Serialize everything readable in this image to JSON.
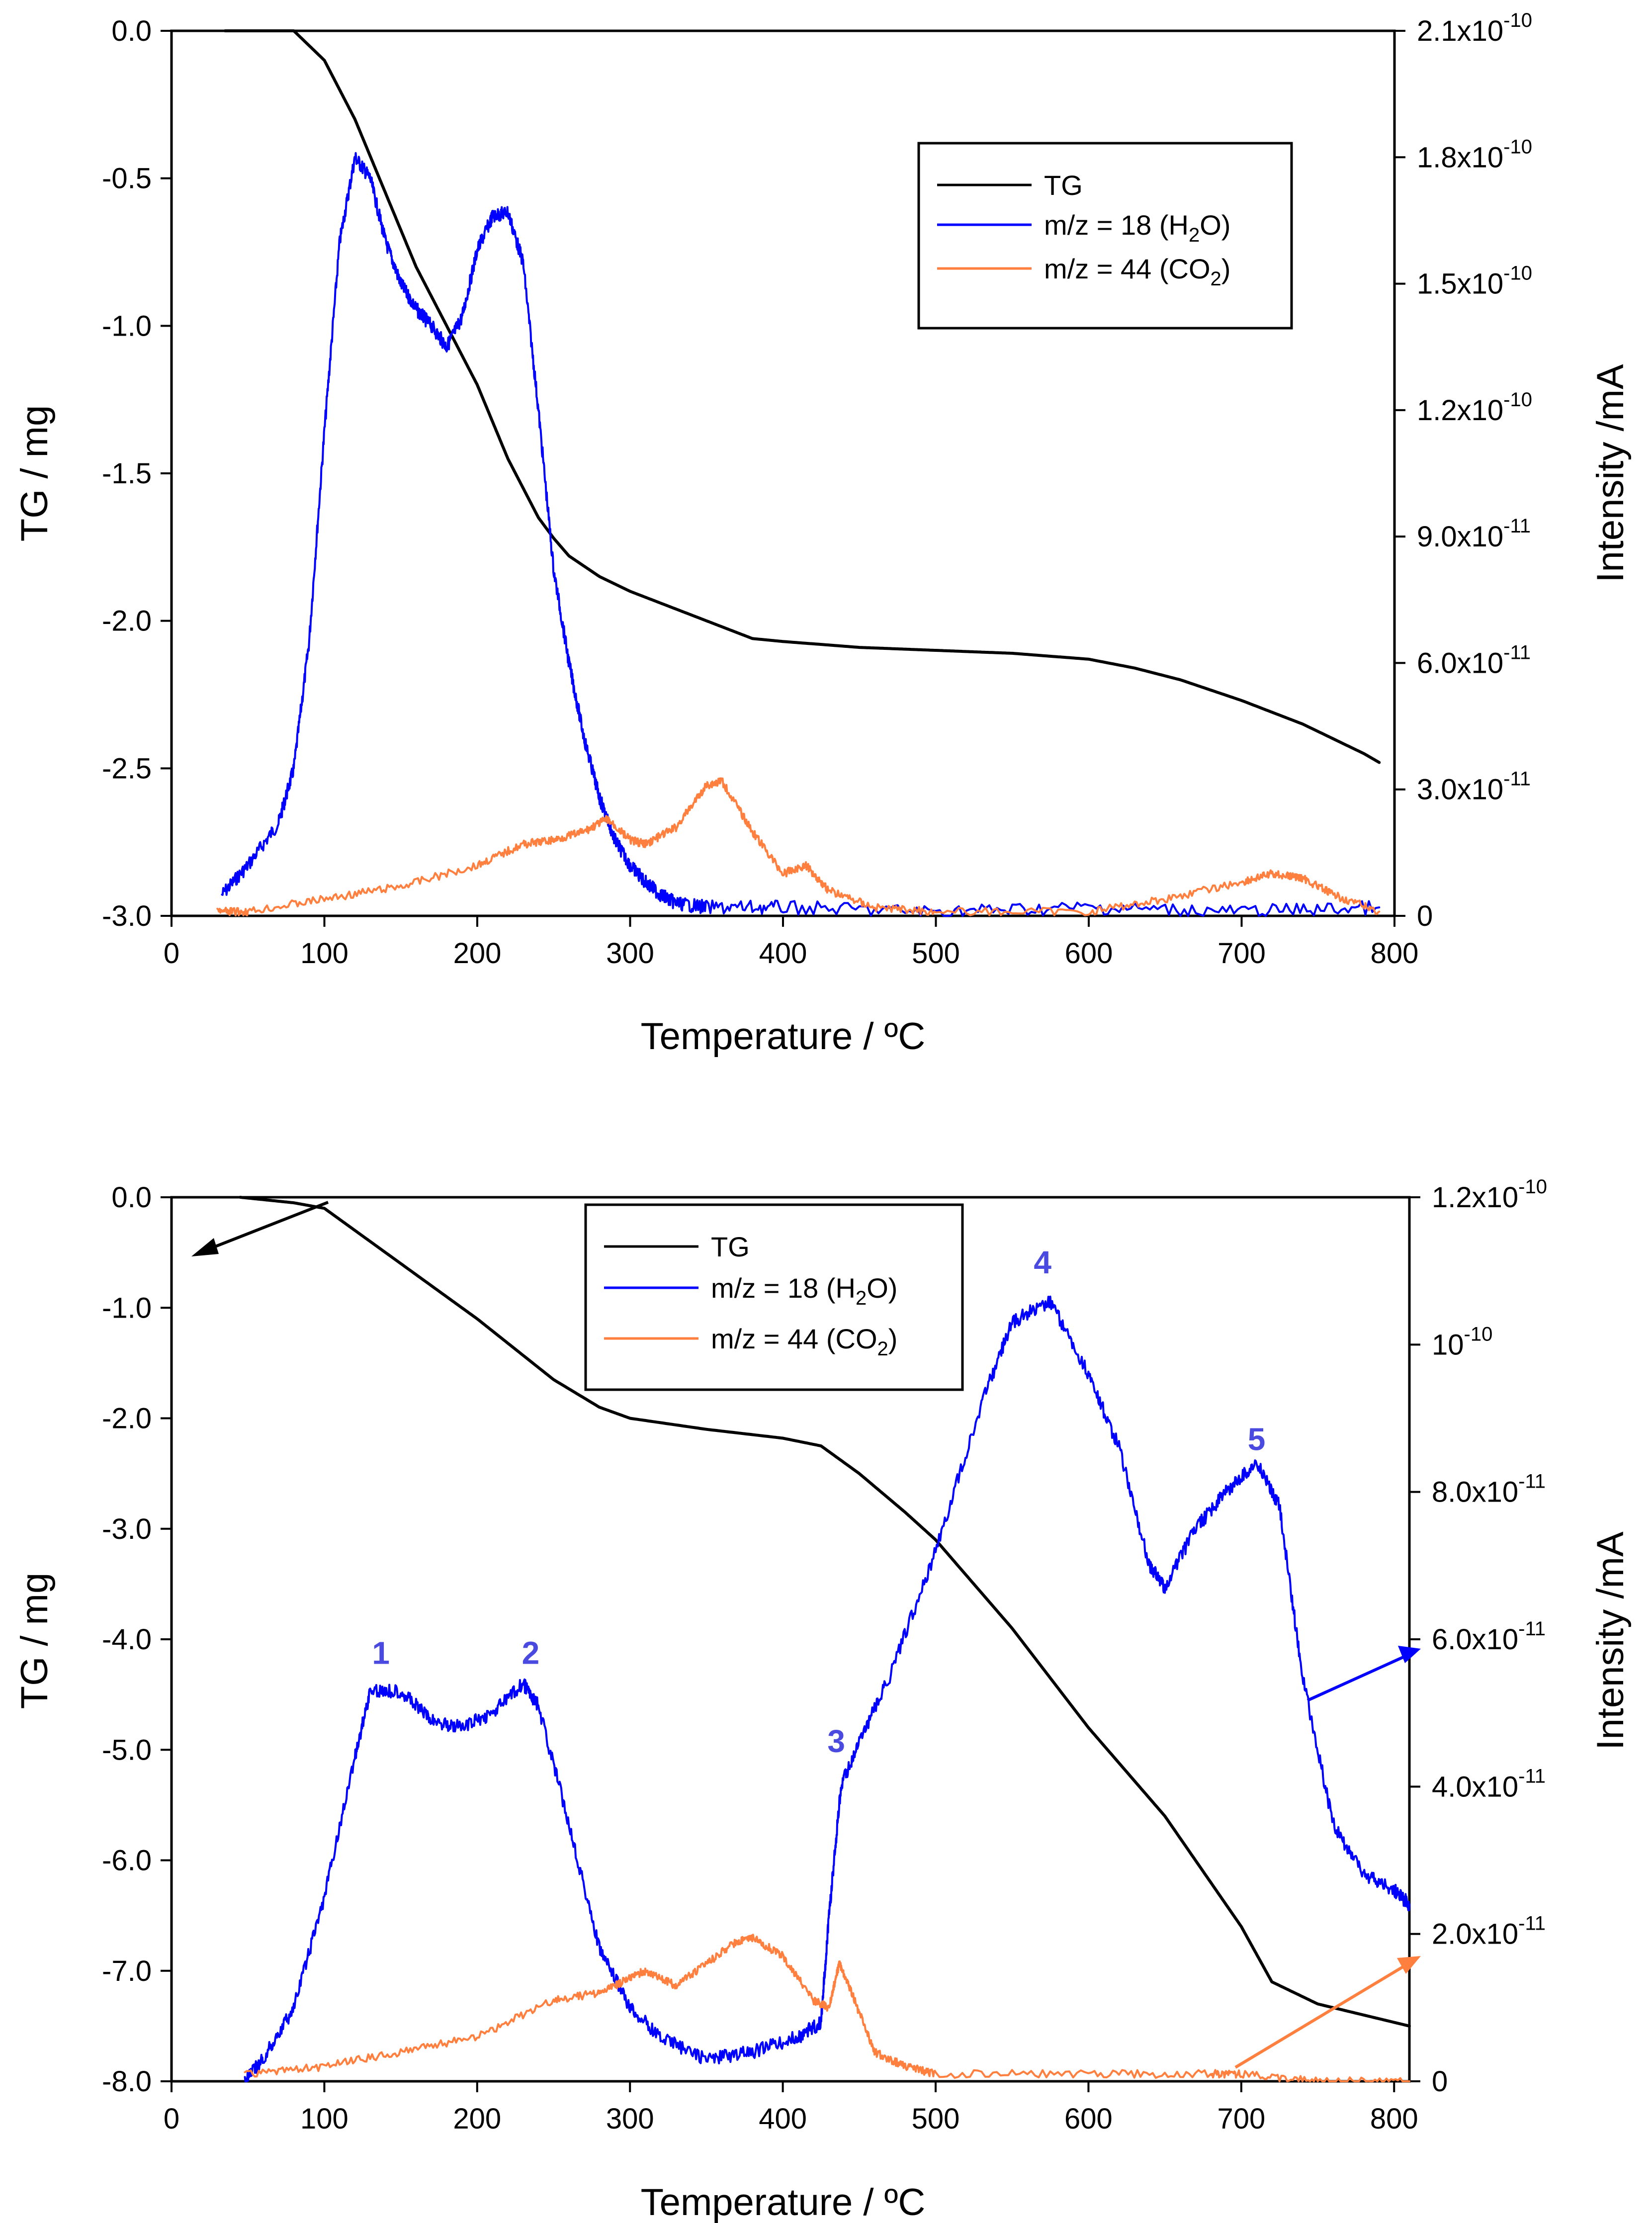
{
  "colors": {
    "tg": "#000000",
    "h2o": "#0000ff",
    "co2": "#ff7f3f",
    "peak_label": "#4a4ae0"
  },
  "chart_data": [
    {
      "type": "line",
      "xlabel": "Temperature / ºC",
      "ylabel": "TG / mg",
      "y2label": "Intensity /mA",
      "xlim": [
        0,
        800
      ],
      "ylim": [
        -3.0,
        0.0
      ],
      "y2lim": [
        0,
        2.1e-10
      ],
      "xticks": [
        "0",
        "100",
        "200",
        "300",
        "400",
        "500",
        "600",
        "700",
        "800"
      ],
      "yticks": [
        "0.0",
        "-0.5",
        "-1.0",
        "-1.5",
        "-2.0",
        "-2.5",
        "-3.0"
      ],
      "y2ticks": [
        "0",
        "3.0x10",
        "6.0x10",
        "9.0x10",
        "1.2x10",
        "1.5x10",
        "1.8x10",
        "2.1x10"
      ],
      "y2tick_exp": [
        "",
        "-11",
        "-11",
        "-11",
        "-10",
        "-10",
        "-10",
        "-10"
      ],
      "legend": {
        "position": "top-right",
        "entries": [
          "TG",
          "m/z = 18 (H",
          "m/z = 44 (CO"
        ],
        "subs": [
          "",
          "2",
          "2"
        ],
        "tails": [
          "",
          "O)",
          ")"
        ]
      },
      "series": [
        {
          "name": "TG",
          "axis": "left",
          "x": [
            35,
            80,
            100,
            120,
            140,
            160,
            180,
            200,
            220,
            240,
            250,
            260,
            280,
            300,
            320,
            340,
            360,
            380,
            400,
            450,
            500,
            550,
            600,
            630,
            660,
            700,
            740,
            780,
            790
          ],
          "y": [
            0.0,
            0.0,
            -0.1,
            -0.3,
            -0.55,
            -0.8,
            -1.0,
            -1.2,
            -1.45,
            -1.65,
            -1.72,
            -1.78,
            -1.85,
            -1.9,
            -1.94,
            -1.98,
            -2.02,
            -2.06,
            -2.07,
            -2.09,
            -2.1,
            -2.11,
            -2.13,
            -2.16,
            -2.2,
            -2.27,
            -2.35,
            -2.45,
            -2.48
          ]
        },
        {
          "name": "m/z = 18 (H2O)",
          "axis": "right",
          "x": [
            33,
            50,
            70,
            80,
            90,
            100,
            110,
            120,
            130,
            140,
            150,
            160,
            170,
            180,
            190,
            200,
            210,
            220,
            230,
            240,
            250,
            260,
            270,
            280,
            290,
            300,
            310,
            320,
            330,
            350,
            400,
            500,
            600,
            700,
            790
          ],
          "y": [
            5e-12,
            1.2e-11,
            2.2e-11,
            3.5e-11,
            6.5e-11,
            1.15e-10,
            1.6e-10,
            1.8e-10,
            1.75e-10,
            1.6e-10,
            1.5e-10,
            1.44e-10,
            1.4e-10,
            1.35e-10,
            1.42e-10,
            1.58e-10,
            1.66e-10,
            1.67e-10,
            1.55e-10,
            1.2e-10,
            8.2e-11,
            6e-11,
            4.2e-11,
            2.8e-11,
            1.8e-11,
            1.2e-11,
            8e-12,
            5e-12,
            3e-12,
            2e-12,
            2e-12,
            1e-12,
            2e-12,
            1e-12,
            2e-12
          ]
        },
        {
          "name": "m/z = 44 (CO2)",
          "axis": "right",
          "x": [
            30,
            50,
            100,
            150,
            200,
            230,
            250,
            270,
            285,
            300,
            310,
            330,
            350,
            360,
            380,
            400,
            415,
            430,
            460,
            500,
            600,
            650,
            700,
            720,
            740,
            760,
            790
          ],
          "y": [
            1e-12,
            1e-12,
            4e-12,
            7e-12,
            1.2e-11,
            1.7e-11,
            1.8e-11,
            2e-11,
            2.3e-11,
            1.8e-11,
            1.7e-11,
            2.1e-11,
            3.1e-11,
            3.2e-11,
            2e-11,
            1e-11,
            1.2e-11,
            6e-12,
            2e-12,
            1e-12,
            1e-12,
            4e-12,
            8e-12,
            1e-11,
            9e-12,
            5e-12,
            1e-12
          ]
        }
      ]
    },
    {
      "type": "line",
      "xlabel": "Temperature / ºC",
      "ylabel": "TG / mg",
      "y2label": "Intensity /mA",
      "xlim": [
        0,
        810
      ],
      "ylim": [
        -8.0,
        0.0
      ],
      "y2lim": [
        0,
        1.2e-10
      ],
      "xticks": [
        "0",
        "100",
        "200",
        "300",
        "400",
        "500",
        "600",
        "700",
        "800"
      ],
      "yticks": [
        "0.0",
        "-1.0",
        "-2.0",
        "-3.0",
        "-4.0",
        "-5.0",
        "-6.0",
        "-7.0",
        "-8.0"
      ],
      "y2ticks": [
        "0",
        "2.0x10",
        "4.0x10",
        "6.0x10",
        "8.0x10",
        "10",
        "1.2x10"
      ],
      "y2tick_exp": [
        "",
        "-11",
        "-11",
        "-11",
        "-11",
        "-10",
        "-10"
      ],
      "legend": {
        "position": "top-center",
        "entries": [
          "TG",
          "m/z = 18 (H",
          "m/z = 44 (CO"
        ],
        "subs": [
          "",
          "2",
          "2"
        ],
        "tails": [
          "",
          "O)",
          ")"
        ]
      },
      "peak_labels": [
        {
          "label": "1",
          "x": 137,
          "y": 5.6e-11
        },
        {
          "label": "2",
          "x": 235,
          "y": 5.6e-11
        },
        {
          "label": "3",
          "x": 435,
          "y": 4.4e-11
        },
        {
          "label": "4",
          "x": 570,
          "y": 1.09e-10
        },
        {
          "label": "5",
          "x": 710,
          "y": 8.5e-11
        }
      ],
      "series": [
        {
          "name": "TG",
          "axis": "left",
          "x": [
            45,
            80,
            100,
            120,
            150,
            200,
            250,
            280,
            300,
            350,
            400,
            425,
            450,
            480,
            500,
            550,
            600,
            650,
            700,
            720,
            750,
            780,
            810
          ],
          "y": [
            0.0,
            -0.05,
            -0.1,
            -0.3,
            -0.6,
            -1.1,
            -1.65,
            -1.9,
            -2.0,
            -2.1,
            -2.18,
            -2.25,
            -2.5,
            -2.85,
            -3.1,
            -3.9,
            -4.8,
            -5.6,
            -6.6,
            -7.1,
            -7.3,
            -7.4,
            -7.5
          ]
        },
        {
          "name": "m/z = 18 (H2O)",
          "axis": "right",
          "x": [
            48,
            60,
            80,
            100,
            120,
            130,
            150,
            170,
            190,
            210,
            230,
            240,
            260,
            280,
            300,
            320,
            350,
            380,
            410,
            425,
            430,
            438,
            450,
            470,
            500,
            530,
            550,
            575,
            600,
            620,
            640,
            650,
            670,
            690,
            710,
            725,
            740,
            760,
            780,
            800,
            810
          ],
          "y": [
            0,
            3e-12,
            1e-11,
            2.5e-11,
            4.4e-11,
            5.3e-11,
            5.3e-11,
            4.9e-11,
            4.8e-11,
            5e-11,
            5.4e-11,
            5.1e-11,
            3.5e-11,
            1.8e-11,
            1e-11,
            6e-12,
            3e-12,
            4e-12,
            6e-12,
            8e-12,
            2.2e-11,
            4e-11,
            4.6e-11,
            5.5e-11,
            7.2e-11,
            9.2e-11,
            1.03e-10,
            1.06e-10,
            9.6e-11,
            8.6e-11,
            7e-11,
            6.7e-11,
            7.5e-11,
            8e-11,
            8.4e-11,
            7.8e-11,
            5.5e-11,
            3.5e-11,
            2.8e-11,
            2.6e-11,
            2.4e-11
          ]
        },
        {
          "name": "m/z = 44 (CO2)",
          "axis": "right",
          "x": [
            48,
            100,
            150,
            200,
            250,
            280,
            300,
            310,
            330,
            350,
            370,
            380,
            400,
            420,
            430,
            437,
            445,
            460,
            480,
            500,
            600,
            680,
            700,
            750,
            810
          ],
          "y": [
            1e-12,
            2e-12,
            4e-12,
            6e-12,
            1.1e-11,
            1.2e-11,
            1.4e-11,
            1.5e-11,
            1.3e-11,
            1.6e-11,
            1.9e-11,
            1.95e-11,
            1.7e-11,
            1.1e-11,
            1e-11,
            1.6e-11,
            1.2e-11,
            4e-12,
            2e-12,
            1e-12,
            1e-12,
            1e-12,
            1e-12,
            0,
            0
          ]
        }
      ]
    }
  ]
}
